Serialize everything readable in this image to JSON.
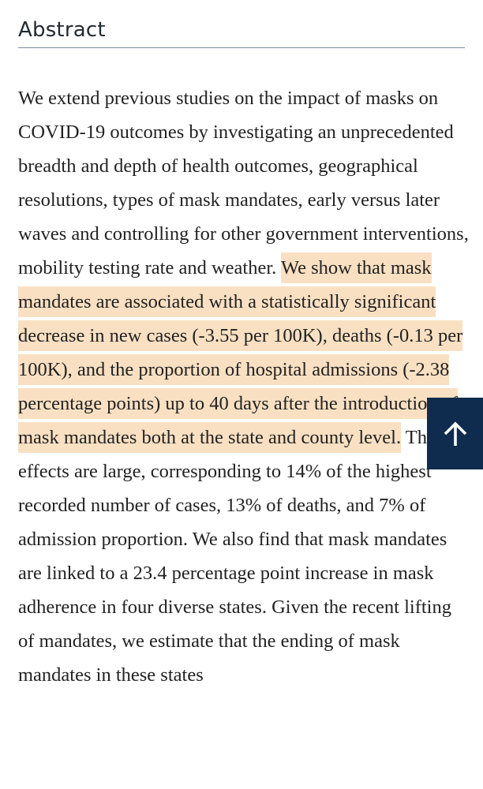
{
  "section": {
    "heading": "Abstract"
  },
  "abstract": {
    "text_before_highlight": "We extend previous studies on the impact of masks on COVID-19 outcomes by investigating an unprecedented breadth and depth of health outcomes, geographical resolutions, types of mask mandates, early versus later waves and controlling for other government interventions, mobility testing rate and weather. ",
    "highlighted_text": "We show that mask mandates are associated with a statistically significant decrease in new cases (-3.55 per 100K), deaths (-0.13 per 100K), and the proportion of hospital admissions (-2.38 percentage points) up to 40 days after the introduction of mask mandates both at the state and county level.",
    "text_after_highlight": " These effects are large, corresponding to 14% of the highest recorded number of cases, 13% of deaths, and 7% of admission proportion. We also find that mask mandates are linked to a 23.4 percentage point increase in mask adherence in four diverse states. Given the recent lifting of mandates, we estimate that the ending of mask mandates in these states"
  },
  "back_to_top": {
    "icon": "arrow-up-icon"
  },
  "colors": {
    "highlight": "#fae0c2",
    "back_to_top_background": "#0f2b4d",
    "heading_rule": "#7a8ea3",
    "text": "#222222"
  }
}
